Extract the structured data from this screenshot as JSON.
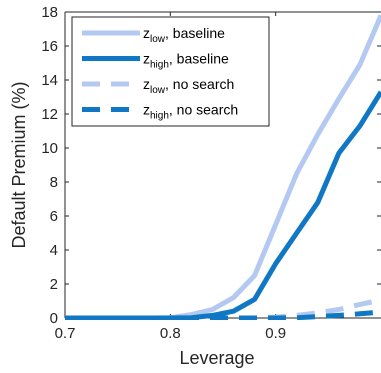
{
  "chart_data": {
    "type": "line",
    "xlabel": "Leverage",
    "ylabel": "Default Premium (%)",
    "xlim": [
      0.7,
      1.0
    ],
    "ylim": [
      0,
      18
    ],
    "xticks": [
      "0.7",
      "0.8",
      "0.9"
    ],
    "yticks": [
      "0",
      "2",
      "4",
      "6",
      "8",
      "10",
      "12",
      "14",
      "16",
      "18"
    ],
    "legend_position": "top-left",
    "x": [
      0.7,
      0.72,
      0.74,
      0.76,
      0.78,
      0.8,
      0.82,
      0.84,
      0.86,
      0.88,
      0.9,
      0.92,
      0.94,
      0.96,
      0.98,
      1.0
    ],
    "series": [
      {
        "name_main": "z",
        "name_sub": "low",
        "name_rest": ", baseline",
        "color": "#b3c9f2",
        "style": "solid",
        "values": [
          0,
          0,
          0,
          0,
          0,
          0.02,
          0.2,
          0.5,
          1.2,
          2.5,
          5.5,
          8.5,
          10.8,
          12.9,
          14.9,
          17.8
        ]
      },
      {
        "name_main": "z",
        "name_sub": "high",
        "name_rest": ", baseline",
        "color": "#0f77c4",
        "style": "solid",
        "values": [
          0,
          0,
          0,
          0,
          0,
          0,
          0.02,
          0.15,
          0.4,
          1.1,
          3.2,
          5.0,
          6.8,
          9.7,
          11.3,
          13.3
        ]
      },
      {
        "name_main": "z",
        "name_sub": "low",
        "name_rest": ", no search",
        "color": "#b3c9f2",
        "style": "dashed",
        "values": [
          0,
          0,
          0,
          0,
          0,
          0,
          0,
          0,
          0,
          0,
          0.05,
          0.15,
          0.3,
          0.5,
          0.8,
          1.05
        ]
      },
      {
        "name_main": "z",
        "name_sub": "high",
        "name_rest": ", no search",
        "color": "#0f77c4",
        "style": "dashed",
        "values": [
          0,
          0,
          0,
          0,
          0,
          0,
          0,
          0,
          0,
          0,
          0,
          0.02,
          0.08,
          0.15,
          0.25,
          0.35
        ]
      }
    ]
  }
}
